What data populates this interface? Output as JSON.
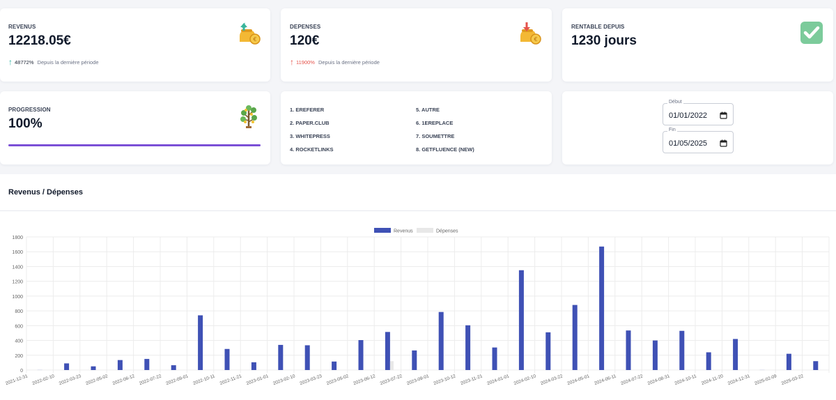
{
  "cards": {
    "revenus": {
      "label": "REVENUS",
      "value": "12218.05€",
      "pct": "48772%",
      "sub": "Depuis la dernière période",
      "trend_color": "#2bb3a3"
    },
    "depenses": {
      "label": "DEPENSES",
      "value": "120€",
      "pct": "11900%",
      "sub": "Depuis la dernière période",
      "trend_color": "#e5534b"
    },
    "rentable": {
      "label": "RENTABLE DEPUIS",
      "value": "1230 jours"
    },
    "progression": {
      "label": "PROGRESSION",
      "value": "100%",
      "progress": 1.0,
      "bar_color": "#7b4fd6"
    }
  },
  "platforms": {
    "col1": [
      "1. EREFERER",
      "2. PAPER.CLUB",
      "3. WHITEPRESS",
      "4. ROCKETLINKS"
    ],
    "col2": [
      "5. AUTRE",
      "6. 1EREPLACE",
      "7. SOUMETTRE",
      "8. GETFLUENCE (NEW)"
    ]
  },
  "dates": {
    "debut_label": "Début",
    "debut_value": "01/01/2022",
    "fin_label": "Fin",
    "fin_value": "01/05/2025"
  },
  "icons": {
    "revenus": "money-bag-up-icon",
    "depenses": "money-bag-down-icon",
    "rentable": "check-icon",
    "progression": "money-tree-icon",
    "date": "calendar-icon"
  },
  "chart_title": "Revenus / Dépenses",
  "chart_data": {
    "type": "bar",
    "categories": [
      "2021-12-31",
      "2022-02-10",
      "2022-03-23",
      "2022-05-02",
      "2022-06-12",
      "2022-07-22",
      "2022-09-01",
      "2022-10-11",
      "2022-11-21",
      "2023-01-01",
      "2023-02-10",
      "2023-03-23",
      "2023-05-02",
      "2023-06-12",
      "2023-07-22",
      "2023-09-01",
      "2023-10-12",
      "2023-11-21",
      "2024-01-01",
      "2024-02-10",
      "2024-03-22",
      "2024-05-01",
      "2024-06-11",
      "2024-07-22",
      "2024-08-31",
      "2024-10-11",
      "2024-11-20",
      "2024-12-31",
      "2025-02-09",
      "2025-03-22"
    ],
    "series": [
      {
        "name": "Revenus",
        "color": "#3f51b5",
        "values": [
          5,
          90,
          50,
          135,
          150,
          65,
          740,
          285,
          105,
          340,
          335,
          115,
          405,
          515,
          265,
          785,
          605,
          305,
          1350,
          510,
          880,
          1670,
          535,
          400,
          530,
          240,
          420,
          5,
          220,
          120
        ]
      },
      {
        "name": "Dépenses",
        "color": "#e8e8e8",
        "values": [
          0,
          0,
          0,
          0,
          0,
          0,
          0,
          0,
          0,
          0,
          0,
          0,
          0,
          120,
          0,
          0,
          0,
          0,
          0,
          0,
          0,
          0,
          0,
          0,
          0,
          0,
          0,
          0,
          0,
          0
        ]
      }
    ],
    "ylim": [
      0,
      1800
    ],
    "yticks": [
      0,
      200,
      400,
      600,
      800,
      1000,
      1200,
      1400,
      1600,
      1800
    ],
    "grid": true,
    "legend": "top-center"
  }
}
